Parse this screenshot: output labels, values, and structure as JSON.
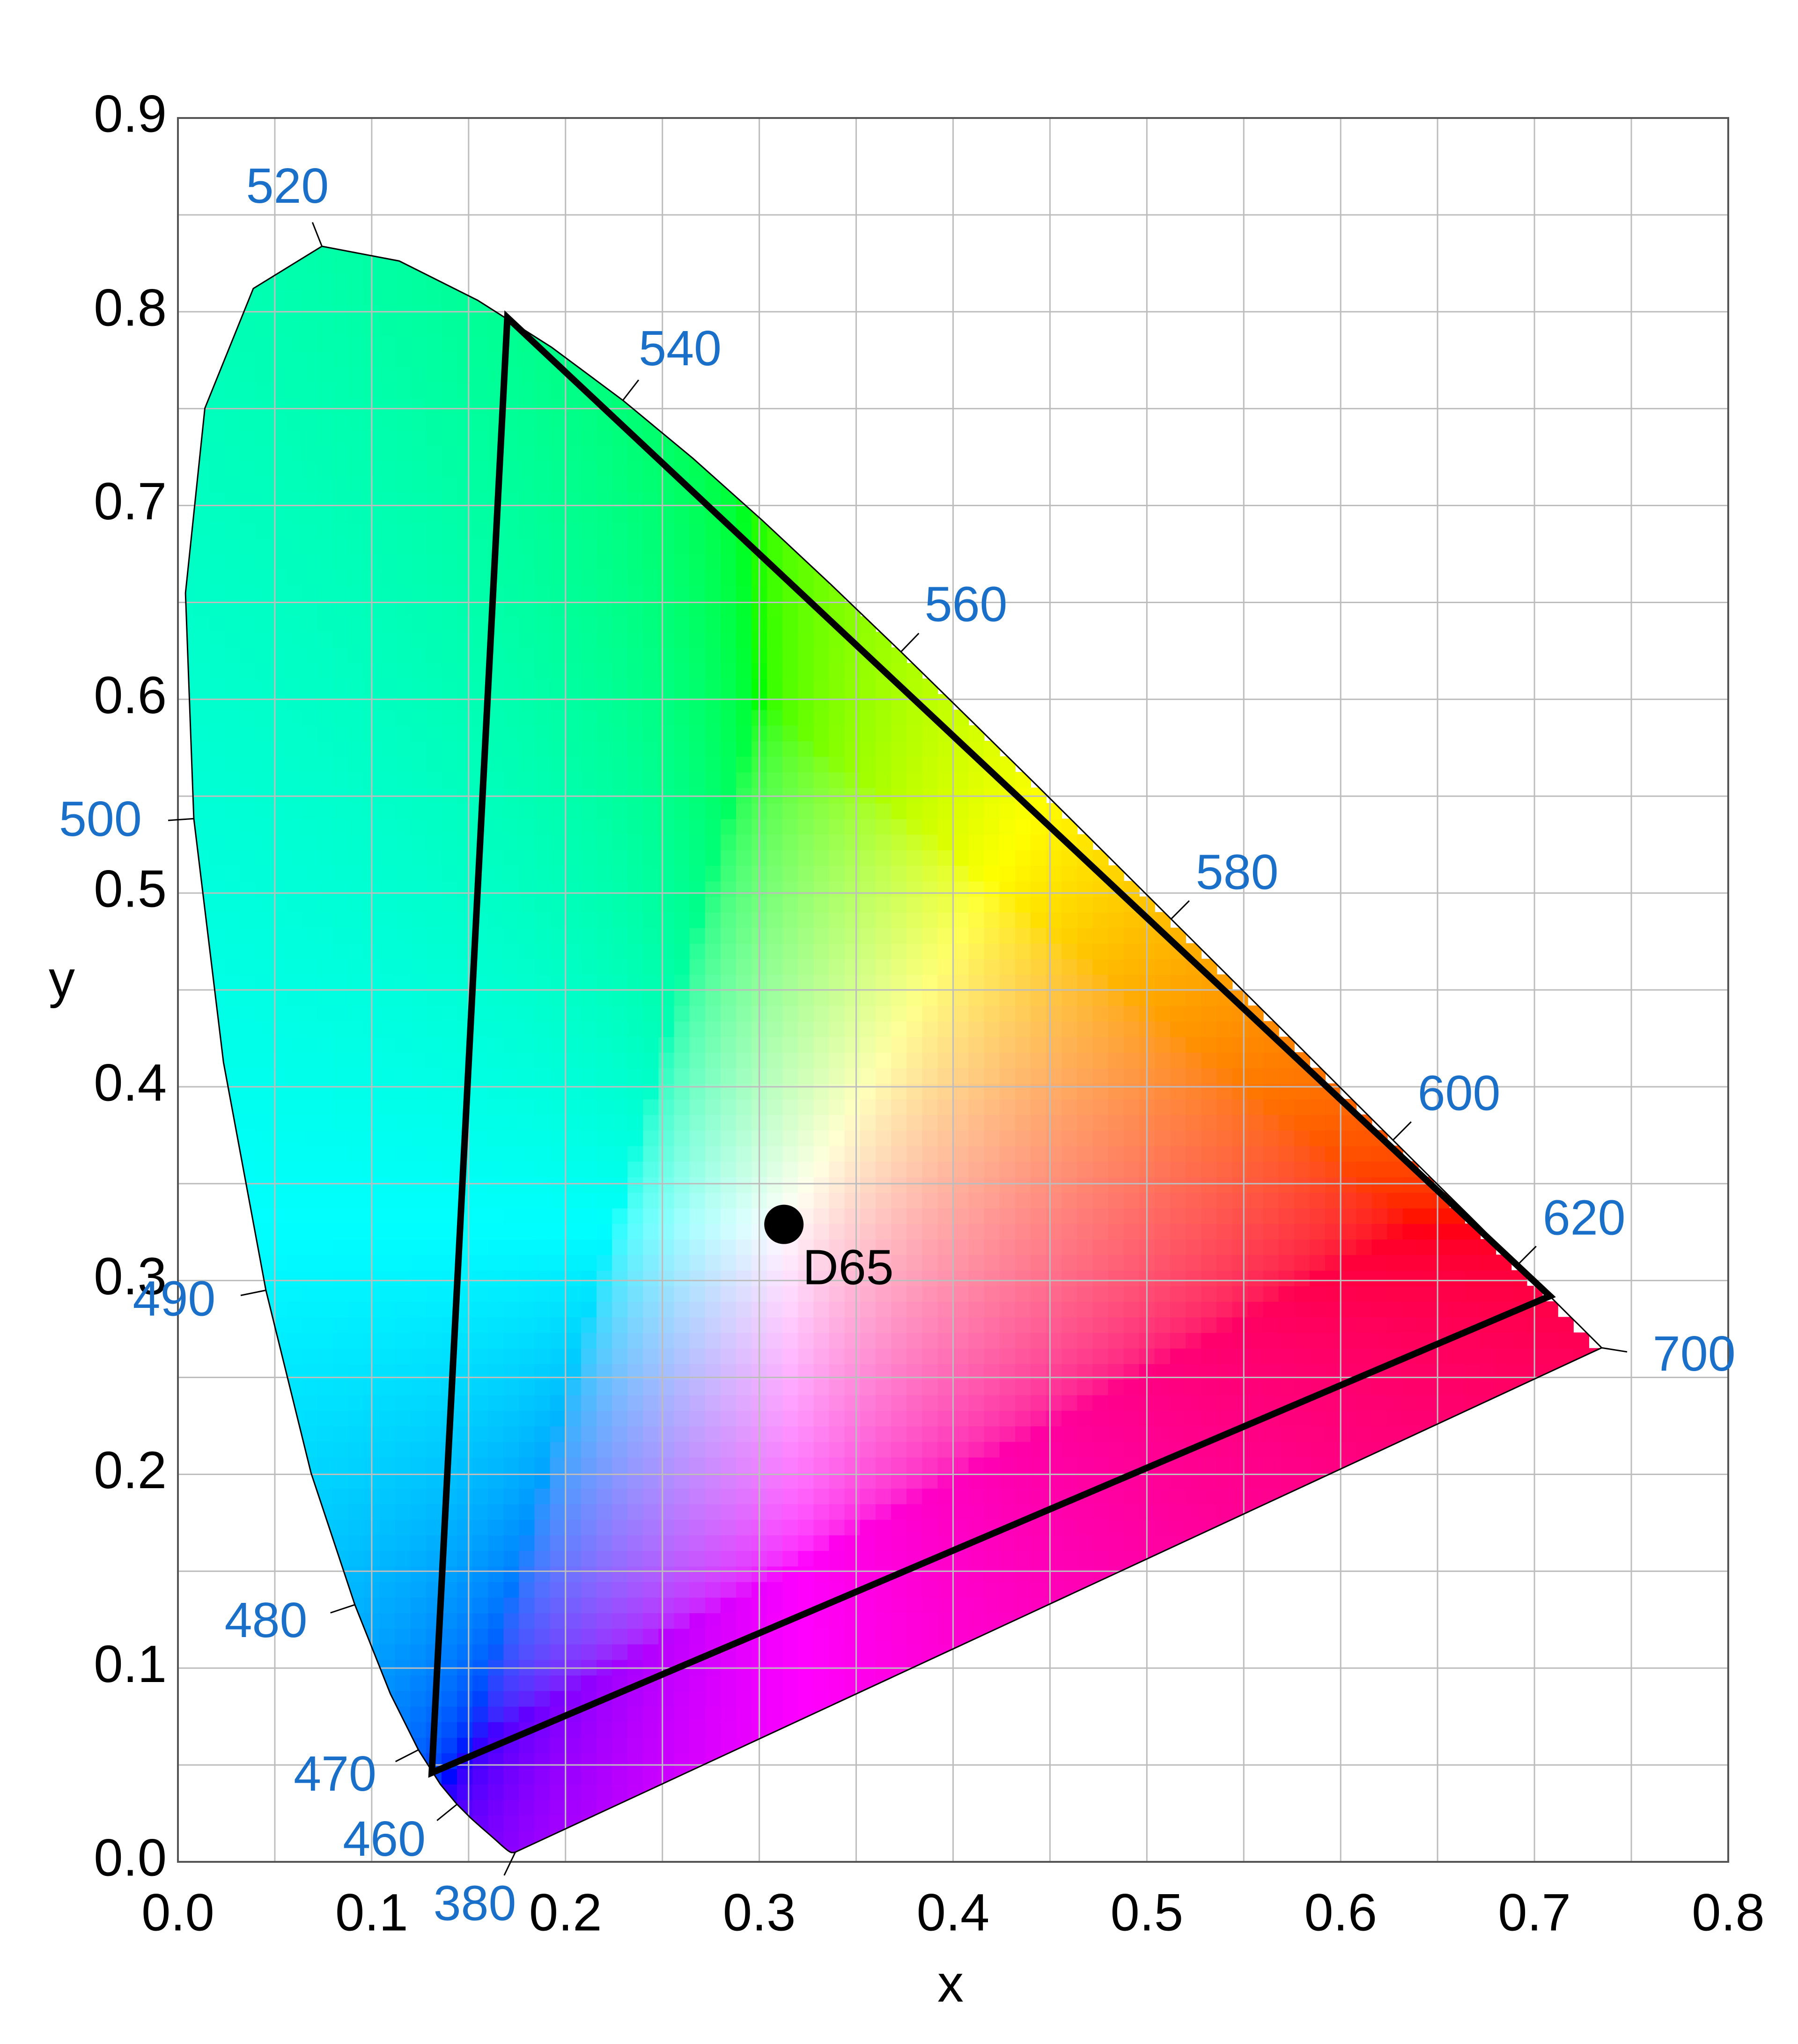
{
  "chart_data": {
    "type": "chromaticity",
    "x_label": "x",
    "y_label": "y",
    "xlim": [
      0,
      0.8
    ],
    "ylim": [
      0,
      0.9
    ],
    "xticks": [
      {
        "value": 0,
        "label": "0.0"
      },
      0.1,
      0.2,
      0.3,
      0.4,
      0.5,
      0.6,
      0.7,
      0.8
    ],
    "yticks": [
      {
        "value": 0,
        "label": "0.0"
      },
      0.1,
      0.2,
      0.3,
      0.4,
      0.5,
      0.6,
      0.7,
      0.8,
      0.9
    ],
    "minor_xticks": [
      0.05,
      0.15,
      0.25,
      0.35,
      0.45,
      0.55,
      0.65,
      0.75
    ],
    "minor_yticks": [
      0.05,
      0.15,
      0.25,
      0.35,
      0.45,
      0.55,
      0.65,
      0.75,
      0.85
    ],
    "grid": true,
    "locus": {
      "x": [
        0.1741,
        0.174,
        0.1738,
        0.1736,
        0.1733,
        0.173,
        0.1726,
        0.1721,
        0.1714,
        0.1703,
        0.1689,
        0.1669,
        0.1644,
        0.1611,
        0.1566,
        0.151,
        0.144,
        0.1355,
        0.1241,
        0.1096,
        0.0913,
        0.0687,
        0.0454,
        0.0235,
        0.0082,
        0.0039,
        0.0139,
        0.0389,
        0.0743,
        0.1142,
        0.1547,
        0.1929,
        0.2296,
        0.2658,
        0.3016,
        0.3373,
        0.3731,
        0.4087,
        0.4441,
        0.4788,
        0.5125,
        0.5448,
        0.5752,
        0.6029,
        0.627,
        0.6482,
        0.6658,
        0.6801,
        0.6915,
        0.7006,
        0.7079,
        0.714,
        0.719,
        0.723,
        0.726,
        0.7283,
        0.73,
        0.7311,
        0.732,
        0.7327,
        0.7334,
        0.734,
        0.7344,
        0.7346,
        0.7347
      ],
      "y": [
        0.005,
        0.005,
        0.0049,
        0.0049,
        0.0048,
        0.0048,
        0.0048,
        0.0048,
        0.0051,
        0.0058,
        0.0069,
        0.0086,
        0.0109,
        0.0138,
        0.0177,
        0.0227,
        0.0297,
        0.0399,
        0.0578,
        0.0868,
        0.1327,
        0.2007,
        0.295,
        0.4127,
        0.5384,
        0.6548,
        0.7502,
        0.812,
        0.8338,
        0.8262,
        0.8059,
        0.7816,
        0.7543,
        0.7243,
        0.6923,
        0.6589,
        0.6245,
        0.5896,
        0.5547,
        0.5202,
        0.4866,
        0.4544,
        0.4242,
        0.3965,
        0.3725,
        0.3514,
        0.334,
        0.3197,
        0.3083,
        0.2993,
        0.292,
        0.2859,
        0.2809,
        0.277,
        0.274,
        0.2717,
        0.27,
        0.2689,
        0.268,
        0.2673,
        0.2666,
        0.266,
        0.2656,
        0.2654,
        0.2653
      ]
    },
    "wavelength_marks": [
      {
        "wavelength": 380,
        "x": 0.1741,
        "y": 0.005
      },
      {
        "wavelength": 460,
        "x": 0.144,
        "y": 0.0297
      },
      {
        "wavelength": 470,
        "x": 0.1241,
        "y": 0.0578
      },
      {
        "wavelength": 480,
        "x": 0.0913,
        "y": 0.1327
      },
      {
        "wavelength": 490,
        "x": 0.0454,
        "y": 0.295
      },
      {
        "wavelength": 500,
        "x": 0.0082,
        "y": 0.5384
      },
      {
        "wavelength": 520,
        "x": 0.0743,
        "y": 0.8338
      },
      {
        "wavelength": 540,
        "x": 0.2296,
        "y": 0.7543
      },
      {
        "wavelength": 560,
        "x": 0.3731,
        "y": 0.6245
      },
      {
        "wavelength": 580,
        "x": 0.5125,
        "y": 0.4866
      },
      {
        "wavelength": 600,
        "x": 0.627,
        "y": 0.3725
      },
      {
        "wavelength": 620,
        "x": 0.6915,
        "y": 0.3083
      },
      {
        "wavelength": 700,
        "x": 0.7347,
        "y": 0.2653
      }
    ],
    "gamut": {
      "x": [
        0.708,
        0.17,
        0.131
      ],
      "y": [
        0.292,
        0.797,
        0.046
      ],
      "color": "#000000"
    },
    "white_point": {
      "label": "D65",
      "x": 0.3127,
      "y": 0.329,
      "color": "#000000"
    },
    "label_color": "#1a6fc9"
  }
}
